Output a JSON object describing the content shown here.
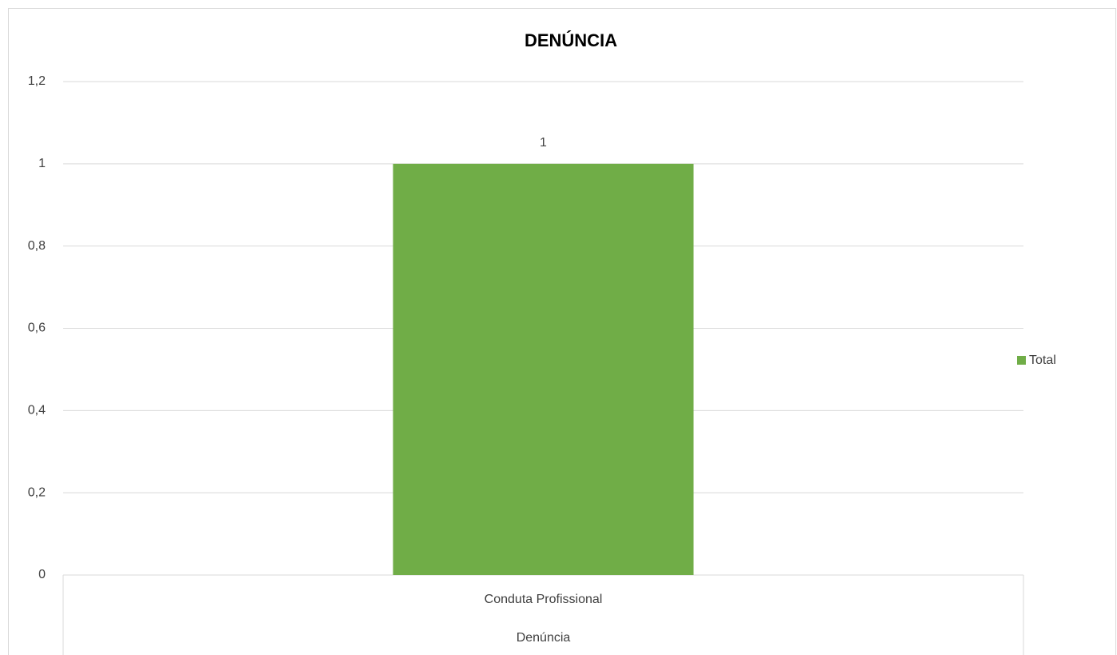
{
  "chart_data": {
    "type": "bar",
    "title": "DENÚNCIA",
    "categories": [
      "Conduta Profissional"
    ],
    "category_group": "Denúncia",
    "series": [
      {
        "name": "Total",
        "color": "#70ad47",
        "values": [
          1
        ]
      }
    ],
    "ylim": [
      0,
      1.2
    ],
    "yticks": [
      0,
      {
        "value": 0.2,
        "label": "0,2"
      },
      {
        "value": 0.4,
        "label": "0,4"
      },
      {
        "value": 0.6,
        "label": "0,6"
      },
      {
        "value": 0.8,
        "label": "0,8"
      },
      1,
      {
        "value": 1.2,
        "label": "1,2"
      }
    ],
    "grid": true,
    "legend": "right"
  }
}
